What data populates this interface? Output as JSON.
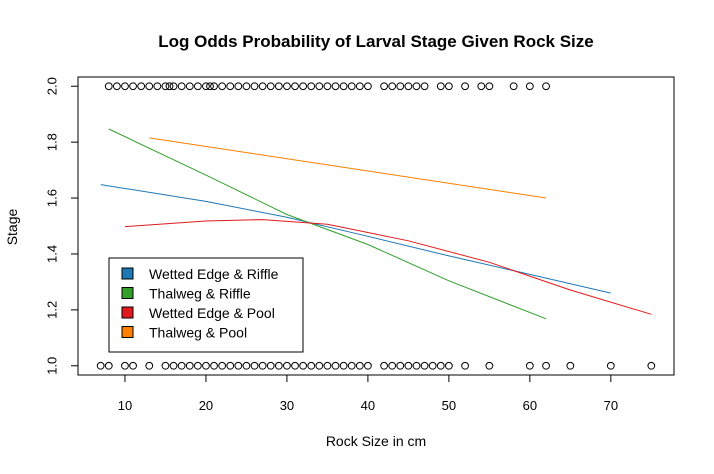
{
  "chart_data": {
    "type": "scatter",
    "title": "Log Odds Probability of Larval Stage Given Rock Size",
    "xlabel": "Rock Size in cm",
    "ylabel": "Stage",
    "xlim": [
      4.2,
      77.8
    ],
    "ylim": [
      0.967,
      2.033
    ],
    "x_ticks": [
      10,
      20,
      30,
      40,
      50,
      60,
      70
    ],
    "y_ticks": [
      1.0,
      1.2,
      1.4,
      1.6,
      1.8,
      2.0
    ],
    "y_tick_labels": [
      "1.0",
      "1.2",
      "1.4",
      "1.6",
      "1.8",
      "2.0"
    ],
    "grid": false,
    "legend_position": "bottom-left",
    "points_stage2_x": [
      8,
      9,
      10,
      11,
      12,
      13,
      14,
      15,
      15.5,
      16,
      17,
      18,
      19,
      20,
      20.5,
      21,
      22,
      23,
      24,
      25,
      26,
      27,
      28,
      29,
      30,
      31,
      32,
      33,
      34,
      35,
      36,
      37,
      38,
      39,
      40,
      42,
      43,
      44,
      45,
      46,
      47,
      49,
      50,
      52,
      54,
      55,
      58,
      60,
      62
    ],
    "points_stage1_x": [
      7,
      8,
      10,
      11,
      13,
      15,
      16,
      17,
      18,
      19,
      20,
      21,
      22,
      23,
      24,
      25,
      26,
      27,
      28,
      29,
      30,
      31,
      32,
      33,
      34,
      35,
      36,
      37,
      38,
      39,
      40,
      42,
      43,
      44,
      45,
      46,
      47,
      48,
      49,
      50,
      52,
      55,
      60,
      62,
      65,
      70,
      75
    ],
    "series": [
      {
        "name": "Wetted Edge & Riffle",
        "color": "#1f78b4",
        "x": [
          7,
          20,
          30,
          40,
          50,
          60,
          70
        ],
        "y": [
          1.648,
          1.588,
          1.531,
          1.463,
          1.393,
          1.327,
          1.26
        ]
      },
      {
        "name": "Thalweg & Riffle",
        "color": "#33a02c",
        "x": [
          8,
          20,
          30,
          40,
          50,
          62
        ],
        "y": [
          1.847,
          1.682,
          1.541,
          1.434,
          1.304,
          1.168
        ]
      },
      {
        "name": "Wetted Edge & Pool",
        "color": "#e31a1c",
        "x": [
          10,
          20,
          27,
          35,
          45,
          55,
          65,
          75
        ],
        "y": [
          1.498,
          1.518,
          1.523,
          1.506,
          1.447,
          1.37,
          1.271,
          1.184
        ]
      },
      {
        "name": "Thalweg & Pool",
        "color": "#ff7f00",
        "x": [
          13,
          62
        ],
        "y": [
          1.815,
          1.6
        ]
      }
    ]
  }
}
